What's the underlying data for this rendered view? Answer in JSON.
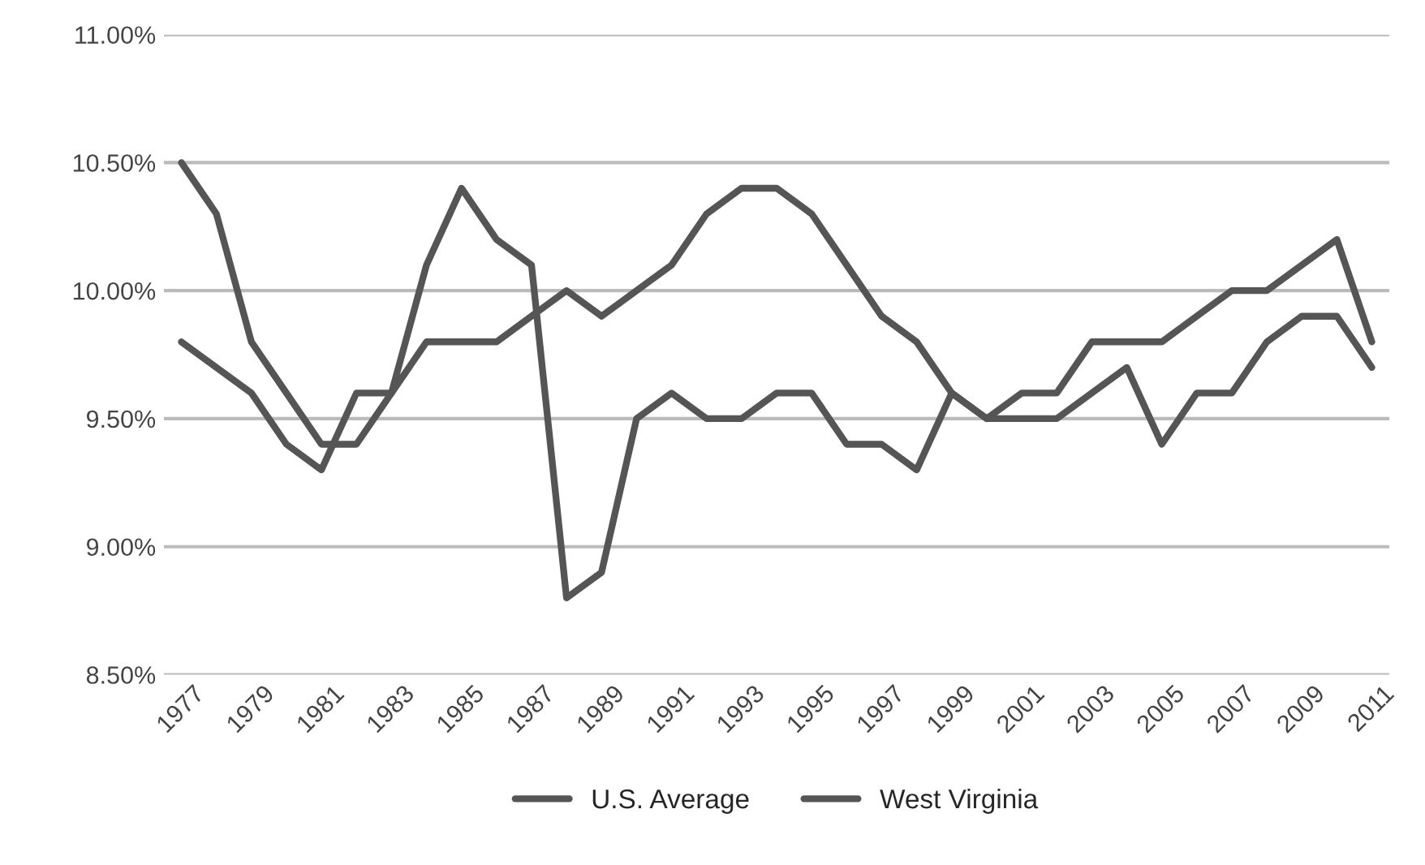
{
  "chart_data": {
    "type": "line",
    "categories": [
      "1977",
      null,
      "1979",
      null,
      "1981",
      null,
      "1983",
      null,
      "1985",
      null,
      "1987",
      null,
      "1989",
      null,
      "1991",
      null,
      "1993",
      null,
      "1995",
      null,
      "1997",
      null,
      "1999",
      null,
      "2001",
      null,
      "2003",
      null,
      "2005",
      null,
      "2007",
      null,
      "2009",
      null,
      "2011"
    ],
    "series": [
      {
        "name": "U.S. Average",
        "color": "#555555",
        "values": [
          9.8,
          9.7,
          9.6,
          9.4,
          9.3,
          9.6,
          9.6,
          9.8,
          9.8,
          9.8,
          9.9,
          10.0,
          9.9,
          10.0,
          10.1,
          10.3,
          10.4,
          10.4,
          10.3,
          10.1,
          9.9,
          9.8,
          9.6,
          9.5,
          9.6,
          9.6,
          9.8,
          9.8,
          9.8,
          9.9,
          10.0,
          10.0,
          10.1,
          10.2,
          9.8
        ]
      },
      {
        "name": "West Virginia",
        "color": "#555555",
        "values": [
          10.5,
          10.3,
          9.8,
          9.6,
          9.4,
          9.4,
          9.6,
          10.1,
          10.4,
          10.2,
          10.1,
          8.8,
          8.9,
          9.5,
          9.6,
          9.5,
          9.5,
          9.6,
          9.6,
          9.4,
          9.4,
          9.3,
          9.6,
          9.5,
          9.5,
          9.5,
          9.6,
          9.7,
          9.4,
          9.6,
          9.6,
          9.8,
          9.9,
          9.9,
          9.7
        ]
      }
    ],
    "ylim": [
      8.5,
      11.0
    ],
    "yticks": [
      {
        "value": 8.5,
        "label": "8.50%"
      },
      {
        "value": 9.0,
        "label": "9.00%"
      },
      {
        "value": 9.5,
        "label": "9.50%"
      },
      {
        "value": 10.0,
        "label": "10.00%"
      },
      {
        "value": 10.5,
        "label": "10.50%"
      },
      {
        "value": 11.0,
        "label": "11.00%"
      }
    ],
    "grid": "y",
    "legend": "bottom",
    "marker": "none",
    "line_style": "solid"
  }
}
